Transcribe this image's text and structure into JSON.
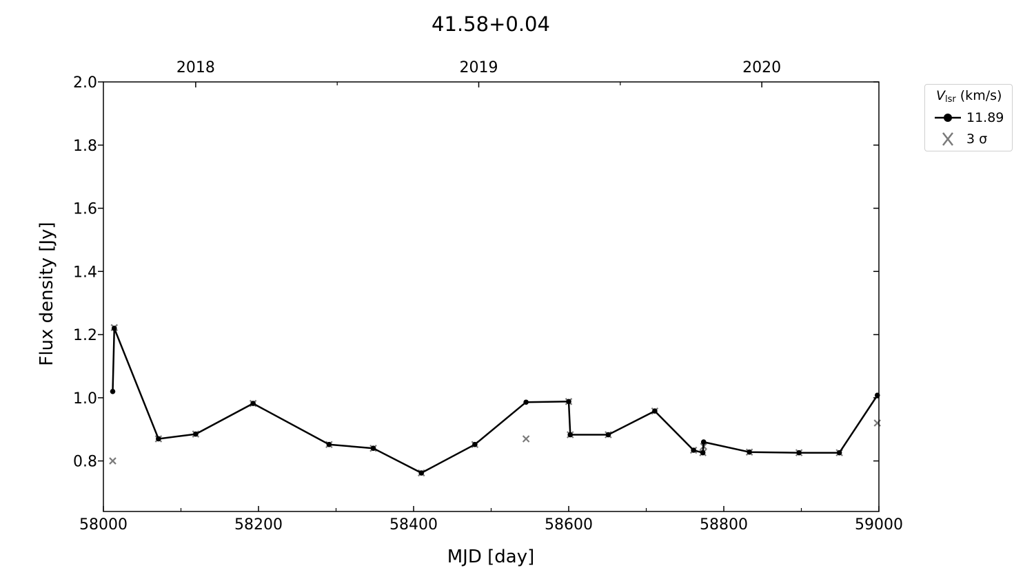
{
  "chart_data": {
    "type": "line",
    "title": "41.58+0.04",
    "xlabel": "MJD [day]",
    "ylabel": "Flux density [Jy]",
    "xlim": [
      58000,
      59000
    ],
    "ylim": [
      0.64,
      2.0
    ],
    "xticks": [
      "58000",
      "58200",
      "58400",
      "58600",
      "58800",
      "59000"
    ],
    "yticks": [
      "0.8",
      "1.0",
      "1.2",
      "1.4",
      "1.6",
      "1.8",
      "2.0"
    ],
    "top_axis": {
      "ticks": [
        {
          "mjd": 58119,
          "label": "2018"
        },
        {
          "mjd": 58484,
          "label": "2019"
        },
        {
          "mjd": 58849,
          "label": "2020"
        }
      ]
    },
    "grid": false,
    "legend": {
      "placement": "outside-top-right",
      "title_symbol": "V",
      "title_sub": "lsr",
      "title_rest": " (km/s)",
      "entries": [
        {
          "label": "11.89",
          "marker": "line-dot"
        },
        {
          "label": "3 σ",
          "marker": "x"
        }
      ]
    },
    "series": [
      {
        "name": "11.89",
        "color": "#000000",
        "x": [
          58012,
          58014,
          58071,
          58119,
          58193,
          58291,
          58348,
          58410,
          58479,
          58545,
          58600,
          58602,
          58651,
          58711,
          58761,
          58773,
          58774,
          58833,
          58897,
          58949,
          58998
        ],
        "y": [
          1.02,
          1.22,
          0.87,
          0.885,
          0.982,
          0.852,
          0.84,
          0.762,
          0.852,
          0.986,
          0.988,
          0.883,
          0.883,
          0.958,
          0.834,
          0.826,
          0.86,
          0.828,
          0.826,
          0.826,
          1.008
        ]
      },
      {
        "name": "3 σ",
        "color": "#7a7a7a",
        "x": [
          58012,
          58014,
          58071,
          58119,
          58193,
          58291,
          58348,
          58410,
          58479,
          58545,
          58600,
          58602,
          58651,
          58711,
          58761,
          58773,
          58774,
          58833,
          58897,
          58949,
          58998
        ],
        "y": [
          0.8,
          1.222,
          0.87,
          0.885,
          0.982,
          0.852,
          0.84,
          0.762,
          0.852,
          0.87,
          0.988,
          0.883,
          0.883,
          0.958,
          0.834,
          0.826,
          0.846,
          0.828,
          0.826,
          0.826,
          0.92
        ]
      }
    ]
  }
}
